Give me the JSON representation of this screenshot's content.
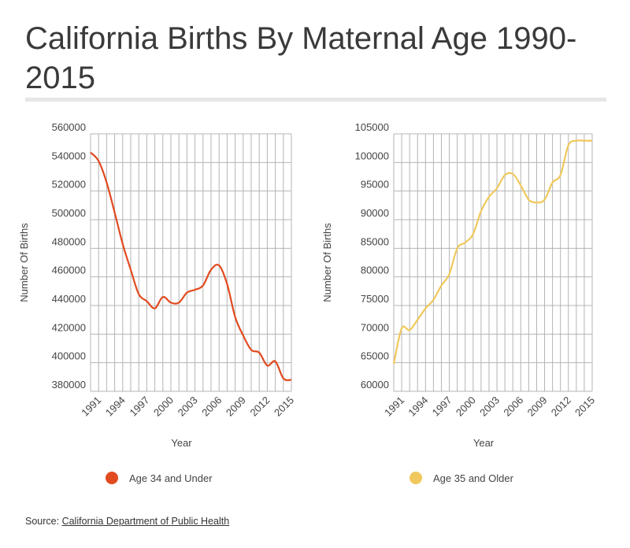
{
  "title": "California Births By Maternal Age 1990-2015",
  "source": {
    "label": "Source:",
    "link_text": "California Department of Public Health"
  },
  "colors": {
    "under": "#e24a1f",
    "over": "#f0c85c",
    "grid": "#b4b4b4"
  },
  "chart_data": [
    {
      "type": "line",
      "series_name": "Age 34 and Under",
      "xlabel": "Year",
      "ylabel": "Number Of Births",
      "xlim": [
        1990,
        2015
      ],
      "ylim": [
        380000,
        560000
      ],
      "yticks": [
        "380000",
        "400000",
        "420000",
        "440000",
        "460000",
        "480000",
        "500000",
        "520000",
        "540000",
        "560000"
      ],
      "xticks": [
        "1991",
        "1994",
        "1997",
        "2000",
        "2003",
        "2006",
        "2009",
        "2012",
        "2015"
      ],
      "x": [
        1990,
        1991,
        1992,
        1993,
        1994,
        1995,
        1996,
        1997,
        1998,
        1999,
        2000,
        2001,
        2002,
        2003,
        2004,
        2005,
        2006,
        2007,
        2008,
        2009,
        2010,
        2011,
        2012,
        2013,
        2014,
        2015
      ],
      "y": [
        547000,
        541000,
        526000,
        505000,
        483000,
        465000,
        448000,
        443000,
        438000,
        446000,
        442000,
        442000,
        449000,
        451000,
        454000,
        465000,
        468000,
        455000,
        432000,
        419000,
        409000,
        407000,
        398000,
        401000,
        389000,
        388000
      ]
    },
    {
      "type": "line",
      "series_name": "Age 35 and Older",
      "xlabel": "Year",
      "ylabel": "Number Of Births",
      "xlim": [
        1990,
        2015
      ],
      "ylim": [
        60000,
        105000
      ],
      "yticks": [
        "60000",
        "65000",
        "70000",
        "75000",
        "80000",
        "85000",
        "90000",
        "95000",
        "100000",
        "105000"
      ],
      "xticks": [
        "1991",
        "1994",
        "1997",
        "2000",
        "2003",
        "2006",
        "2009",
        "2012",
        "2015"
      ],
      "x": [
        1990,
        1991,
        1992,
        1993,
        1994,
        1995,
        1996,
        1997,
        1998,
        1999,
        2000,
        2001,
        2002,
        2003,
        2004,
        2005,
        2006,
        2007,
        2008,
        2009,
        2010,
        2011,
        2012,
        2013,
        2014,
        2015
      ],
      "y": [
        64800,
        71000,
        70700,
        72500,
        74500,
        76000,
        78500,
        80500,
        85000,
        86000,
        87500,
        91500,
        94000,
        95500,
        97800,
        98000,
        96000,
        93500,
        93000,
        93500,
        96500,
        97800,
        103000,
        103800,
        103800,
        103800
      ]
    }
  ]
}
